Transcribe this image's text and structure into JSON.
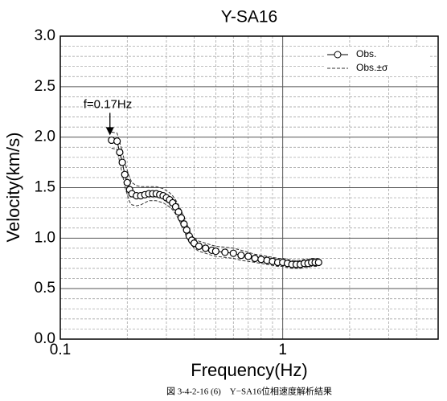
{
  "chart_data": {
    "type": "line",
    "title": "Y-SA16",
    "xlabel": "Frequency(Hz)",
    "ylabel": "Velocity(km/s)",
    "caption": "図 3-4-2-16 (6)　Y−SA16位相速度解析結果",
    "xscale": "log",
    "xlim": [
      0.1,
      5
    ],
    "ylim": [
      0,
      3
    ],
    "xticks": [
      0.1,
      1
    ],
    "yticks": [
      {
        "value": 0,
        "label": "0.0"
      },
      0.5,
      {
        "value": 1,
        "label": "1.0"
      },
      1.5,
      {
        "value": 2,
        "label": "2.0"
      },
      2.5,
      {
        "value": 3,
        "label": "3.0"
      }
    ],
    "xminorticks": [
      0.2,
      0.3,
      0.4,
      0.5,
      0.6,
      0.7,
      0.8,
      0.9,
      2,
      3,
      4
    ],
    "yminorticks": [
      0.1,
      0.2,
      0.3,
      0.4,
      0.6,
      0.7,
      0.8,
      0.9,
      1.1,
      1.2,
      1.3,
      1.4,
      1.6,
      1.7,
      1.8,
      1.9,
      2.1,
      2.2,
      2.3,
      2.4,
      2.6,
      2.7,
      2.8,
      2.9
    ],
    "grid": true,
    "legend": "upper right",
    "annotations": [
      {
        "text": "f=0.17Hz",
        "x": 0.17
      }
    ],
    "x": [
      0.17,
      0.18,
      0.185,
      0.19,
      0.195,
      0.2,
      0.205,
      0.21,
      0.22,
      0.23,
      0.24,
      0.25,
      0.26,
      0.27,
      0.28,
      0.29,
      0.3,
      0.31,
      0.32,
      0.33,
      0.34,
      0.35,
      0.36,
      0.37,
      0.38,
      0.39,
      0.4,
      0.42,
      0.45,
      0.48,
      0.5,
      0.55,
      0.6,
      0.65,
      0.7,
      0.75,
      0.8,
      0.85,
      0.9,
      0.95,
      1.0,
      1.05,
      1.1,
      1.15,
      1.2,
      1.25,
      1.3,
      1.35,
      1.4,
      1.45
    ],
    "series": [
      {
        "name": "Obs.",
        "color": "#000000",
        "values": [
          1.97,
          1.96,
          1.85,
          1.75,
          1.63,
          1.55,
          1.48,
          1.44,
          1.42,
          1.42,
          1.43,
          1.44,
          1.44,
          1.44,
          1.43,
          1.42,
          1.4,
          1.38,
          1.35,
          1.31,
          1.26,
          1.2,
          1.14,
          1.08,
          1.02,
          0.98,
          0.95,
          0.92,
          0.9,
          0.88,
          0.87,
          0.86,
          0.85,
          0.83,
          0.82,
          0.8,
          0.79,
          0.78,
          0.77,
          0.76,
          0.76,
          0.75,
          0.74,
          0.74,
          0.74,
          0.75,
          0.75,
          0.76,
          0.76,
          0.76
        ]
      },
      {
        "name": "Obs.±σ",
        "color": "#333333",
        "upper": [
          2.05,
          2.04,
          1.95,
          1.86,
          1.75,
          1.67,
          1.6,
          1.55,
          1.52,
          1.51,
          1.51,
          1.51,
          1.51,
          1.51,
          1.5,
          1.49,
          1.47,
          1.45,
          1.42,
          1.38,
          1.33,
          1.27,
          1.21,
          1.15,
          1.08,
          1.03,
          1.0,
          0.97,
          0.95,
          0.93,
          0.92,
          0.91,
          0.9,
          0.88,
          0.86,
          0.84,
          0.83,
          0.82,
          0.81,
          0.8,
          0.8,
          0.79,
          0.78,
          0.78,
          0.78,
          0.79,
          0.79,
          0.8,
          0.8,
          0.8
        ],
        "lower": [
          1.89,
          1.88,
          1.75,
          1.64,
          1.51,
          1.43,
          1.36,
          1.33,
          1.32,
          1.33,
          1.35,
          1.37,
          1.37,
          1.37,
          1.36,
          1.35,
          1.33,
          1.31,
          1.28,
          1.24,
          1.19,
          1.13,
          1.07,
          1.01,
          0.96,
          0.93,
          0.9,
          0.87,
          0.85,
          0.83,
          0.82,
          0.81,
          0.8,
          0.78,
          0.77,
          0.76,
          0.75,
          0.74,
          0.73,
          0.72,
          0.72,
          0.71,
          0.7,
          0.7,
          0.7,
          0.71,
          0.71,
          0.72,
          0.72,
          0.72
        ]
      }
    ]
  }
}
